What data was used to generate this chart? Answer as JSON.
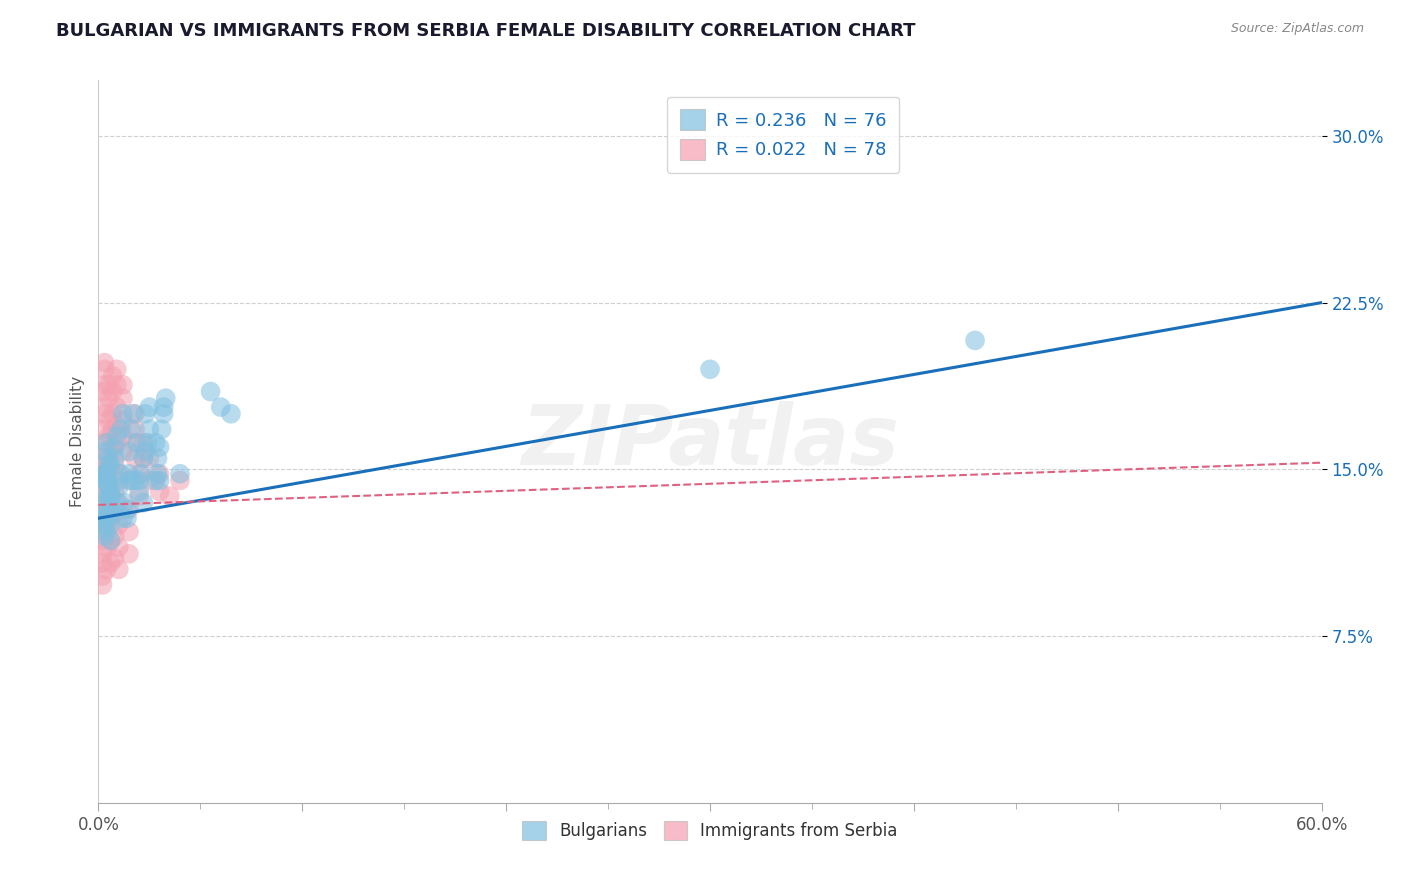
{
  "title": "BULGARIAN VS IMMIGRANTS FROM SERBIA FEMALE DISABILITY CORRELATION CHART",
  "source": "Source: ZipAtlas.com",
  "ylabel": "Female Disability",
  "xlim": [
    0.0,
    0.6
  ],
  "ylim": [
    0.0,
    0.325
  ],
  "xtick_positions": [
    0.0,
    0.1,
    0.2,
    0.3,
    0.4,
    0.5,
    0.6
  ],
  "xtick_labels_show": [
    "0.0%",
    "",
    "",
    "",
    "",
    "",
    "60.0%"
  ],
  "ytick_vals": [
    0.075,
    0.15,
    0.225,
    0.3
  ],
  "ytick_labels": [
    "7.5%",
    "15.0%",
    "22.5%",
    "30.0%"
  ],
  "R_blue": 0.236,
  "N_blue": 76,
  "R_pink": 0.022,
  "N_pink": 78,
  "blue_color": "#7fbfdf",
  "pink_color": "#f4a0b0",
  "blue_line_color": "#1a6fba",
  "pink_line_color": "#e06080",
  "watermark": "ZIPatlas",
  "legend_label_blue": "Bulgarians",
  "legend_label_pink": "Immigrants from Serbia",
  "title_color": "#1a1a2e",
  "grid_color": "#d0d0d0",
  "background_color": "#ffffff",
  "blue_line_start_y": 0.128,
  "blue_line_end_y": 0.225,
  "pink_line_start_y": 0.134,
  "pink_line_end_y": 0.153,
  "blue_scatter_x": [
    0.004,
    0.006,
    0.004,
    0.005,
    0.006,
    0.003,
    0.004,
    0.005,
    0.003,
    0.006,
    0.005,
    0.004,
    0.003,
    0.005,
    0.004,
    0.006,
    0.003,
    0.004,
    0.005,
    0.006,
    0.004,
    0.003,
    0.005,
    0.004,
    0.003,
    0.006,
    0.005,
    0.004,
    0.003,
    0.006,
    0.008,
    0.01,
    0.012,
    0.009,
    0.011,
    0.01,
    0.008,
    0.012,
    0.009,
    0.011,
    0.015,
    0.018,
    0.016,
    0.014,
    0.017,
    0.015,
    0.013,
    0.019,
    0.016,
    0.014,
    0.022,
    0.025,
    0.02,
    0.023,
    0.021,
    0.024,
    0.022,
    0.025,
    0.02,
    0.023,
    0.03,
    0.032,
    0.028,
    0.031,
    0.029,
    0.033,
    0.03,
    0.028,
    0.032,
    0.029,
    0.055,
    0.06,
    0.065,
    0.04,
    0.3,
    0.43
  ],
  "blue_scatter_y": [
    0.145,
    0.13,
    0.138,
    0.152,
    0.125,
    0.148,
    0.135,
    0.142,
    0.128,
    0.14,
    0.155,
    0.122,
    0.148,
    0.132,
    0.145,
    0.118,
    0.158,
    0.128,
    0.142,
    0.135,
    0.162,
    0.125,
    0.138,
    0.148,
    0.12,
    0.152,
    0.132,
    0.145,
    0.128,
    0.138,
    0.16,
    0.145,
    0.175,
    0.135,
    0.168,
    0.142,
    0.155,
    0.128,
    0.165,
    0.148,
    0.158,
    0.145,
    0.168,
    0.132,
    0.175,
    0.148,
    0.135,
    0.162,
    0.145,
    0.128,
    0.155,
    0.168,
    0.14,
    0.175,
    0.148,
    0.162,
    0.135,
    0.178,
    0.145,
    0.158,
    0.16,
    0.175,
    0.145,
    0.168,
    0.155,
    0.182,
    0.145,
    0.162,
    0.178,
    0.148,
    0.185,
    0.178,
    0.175,
    0.148,
    0.195,
    0.208
  ],
  "pink_scatter_x": [
    0.002,
    0.003,
    0.002,
    0.003,
    0.002,
    0.003,
    0.002,
    0.003,
    0.002,
    0.003,
    0.002,
    0.003,
    0.002,
    0.003,
    0.002,
    0.003,
    0.002,
    0.003,
    0.002,
    0.003,
    0.004,
    0.005,
    0.004,
    0.005,
    0.004,
    0.005,
    0.004,
    0.005,
    0.004,
    0.005,
    0.006,
    0.007,
    0.006,
    0.007,
    0.006,
    0.007,
    0.006,
    0.007,
    0.006,
    0.007,
    0.008,
    0.009,
    0.008,
    0.009,
    0.008,
    0.009,
    0.008,
    0.009,
    0.008,
    0.009,
    0.01,
    0.012,
    0.01,
    0.012,
    0.01,
    0.012,
    0.01,
    0.012,
    0.01,
    0.012,
    0.015,
    0.018,
    0.015,
    0.018,
    0.015,
    0.018,
    0.015,
    0.018,
    0.02,
    0.022,
    0.02,
    0.022,
    0.025,
    0.025,
    0.03,
    0.03,
    0.035,
    0.04
  ],
  "pink_scatter_y": [
    0.14,
    0.152,
    0.128,
    0.162,
    0.118,
    0.175,
    0.108,
    0.188,
    0.098,
    0.198,
    0.145,
    0.155,
    0.132,
    0.168,
    0.122,
    0.178,
    0.112,
    0.185,
    0.102,
    0.195,
    0.148,
    0.158,
    0.135,
    0.165,
    0.125,
    0.172,
    0.115,
    0.182,
    0.105,
    0.188,
    0.15,
    0.16,
    0.138,
    0.168,
    0.128,
    0.175,
    0.118,
    0.185,
    0.108,
    0.192,
    0.152,
    0.162,
    0.14,
    0.17,
    0.13,
    0.178,
    0.12,
    0.188,
    0.11,
    0.195,
    0.148,
    0.158,
    0.135,
    0.165,
    0.125,
    0.172,
    0.115,
    0.182,
    0.105,
    0.188,
    0.145,
    0.155,
    0.132,
    0.162,
    0.122,
    0.168,
    0.112,
    0.175,
    0.148,
    0.155,
    0.138,
    0.162,
    0.145,
    0.155,
    0.14,
    0.148,
    0.138,
    0.145
  ]
}
